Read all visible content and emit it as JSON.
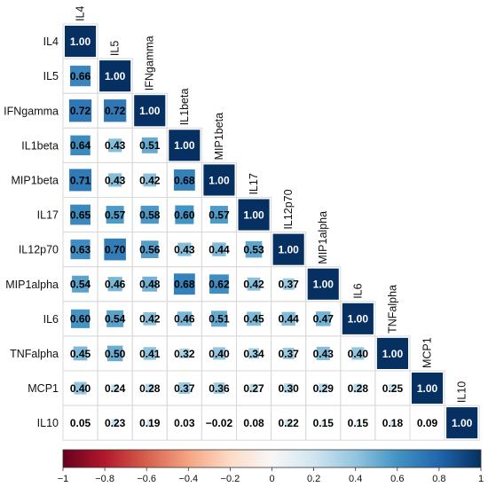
{
  "chart_data": {
    "type": "heatmap",
    "title": "",
    "variables": [
      "IL4",
      "IL5",
      "IFNgamma",
      "IL1beta",
      "MIP1beta",
      "IL17",
      "IL12p70",
      "MIP1alpha",
      "IL6",
      "TNFalpha",
      "MCP1",
      "IL10"
    ],
    "matrix_lower": [
      [
        1.0
      ],
      [
        0.66,
        1.0
      ],
      [
        0.72,
        0.72,
        1.0
      ],
      [
        0.64,
        0.43,
        0.51,
        1.0
      ],
      [
        0.71,
        0.43,
        0.42,
        0.68,
        1.0
      ],
      [
        0.65,
        0.57,
        0.58,
        0.6,
        0.57,
        1.0
      ],
      [
        0.63,
        0.7,
        0.56,
        0.43,
        0.44,
        0.53,
        1.0
      ],
      [
        0.54,
        0.46,
        0.48,
        0.68,
        0.62,
        0.42,
        0.37,
        1.0
      ],
      [
        0.6,
        0.54,
        0.42,
        0.46,
        0.51,
        0.45,
        0.44,
        0.47,
        1.0
      ],
      [
        0.45,
        0.5,
        0.41,
        0.32,
        0.4,
        0.34,
        0.37,
        0.43,
        0.4,
        1.0
      ],
      [
        0.4,
        0.24,
        0.28,
        0.37,
        0.36,
        0.27,
        0.3,
        0.29,
        0.28,
        0.25,
        1.0
      ],
      [
        0.05,
        0.23,
        0.19,
        0.03,
        -0.02,
        0.08,
        0.22,
        0.15,
        0.15,
        0.18,
        0.09,
        1.0
      ]
    ],
    "colorbar": {
      "range": [
        -1,
        1
      ],
      "ticks": [
        -1,
        -0.8,
        -0.6,
        -0.4,
        -0.2,
        0,
        0.2,
        0.4,
        0.6,
        0.8,
        1
      ],
      "tick_labels": [
        "−1",
        "−0.8",
        "−0.6",
        "−0.4",
        "−0.2",
        "0",
        "0.2",
        "0.4",
        "0.6",
        "0.8",
        "1"
      ],
      "colors": [
        "#67001f",
        "#b2182b",
        "#d6604d",
        "#f4a582",
        "#fddbc7",
        "#f7f7f7",
        "#d1e5f0",
        "#92c5de",
        "#4393c3",
        "#2166ac",
        "#053061"
      ],
      "placement": "bottom"
    },
    "legend": "colorbar-bottom",
    "grid": true
  }
}
